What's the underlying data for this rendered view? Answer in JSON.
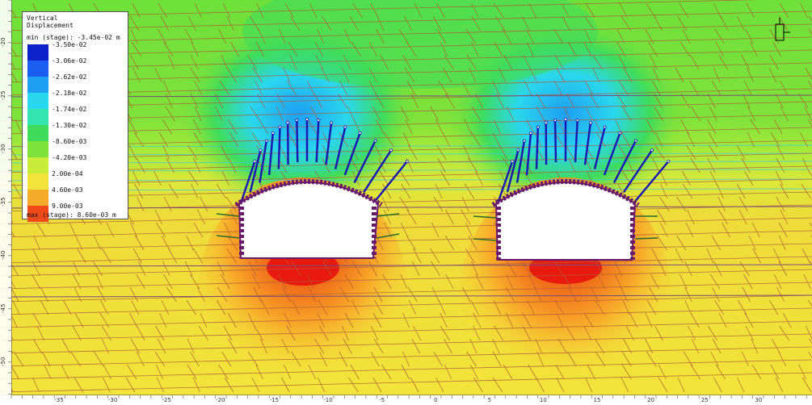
{
  "legend": {
    "title_line1": "Vertical",
    "title_line2": "Displacement",
    "min_text": "min (stage): -3.45e-02 m",
    "max_text": "max (stage): 8.60e-03 m",
    "items": [
      {
        "label": "-3.50e-02",
        "color": "#0b22c8"
      },
      {
        "label": "-3.06e-02",
        "color": "#1a5ef0"
      },
      {
        "label": "-2.62e-02",
        "color": "#1e9ff2"
      },
      {
        "label": "-2.18e-02",
        "color": "#2ad7ee"
      },
      {
        "label": "-1.74e-02",
        "color": "#35e5b0"
      },
      {
        "label": "-1.30e-02",
        "color": "#3fdc5c"
      },
      {
        "label": "-8.60e-03",
        "color": "#7fe23a"
      },
      {
        "label": "-4.20e-03",
        "color": "#c8ec3a"
      },
      {
        "label": "2.00e-04",
        "color": "#f2e43a"
      },
      {
        "label": "4.60e-03",
        "color": "#f7ab2a"
      },
      {
        "label": "9.00e-03",
        "color": "#f04a1a"
      }
    ]
  },
  "axes": {
    "x_ticks": [
      "-35",
      "-30",
      "-25",
      "-20",
      "-15",
      "-10",
      "-5",
      "0",
      "5",
      "10",
      "15",
      "20",
      "25",
      "30"
    ],
    "y_ticks": [
      "-20",
      "-25",
      "-30",
      "-35",
      "-40",
      "-45",
      "-50"
    ]
  },
  "colors": {
    "contact_lines": "#b05a3a",
    "rock_bolt": "#1a1ab0",
    "liner": "#6a1a6a",
    "wall_bolt": "#2a6a2a"
  }
}
